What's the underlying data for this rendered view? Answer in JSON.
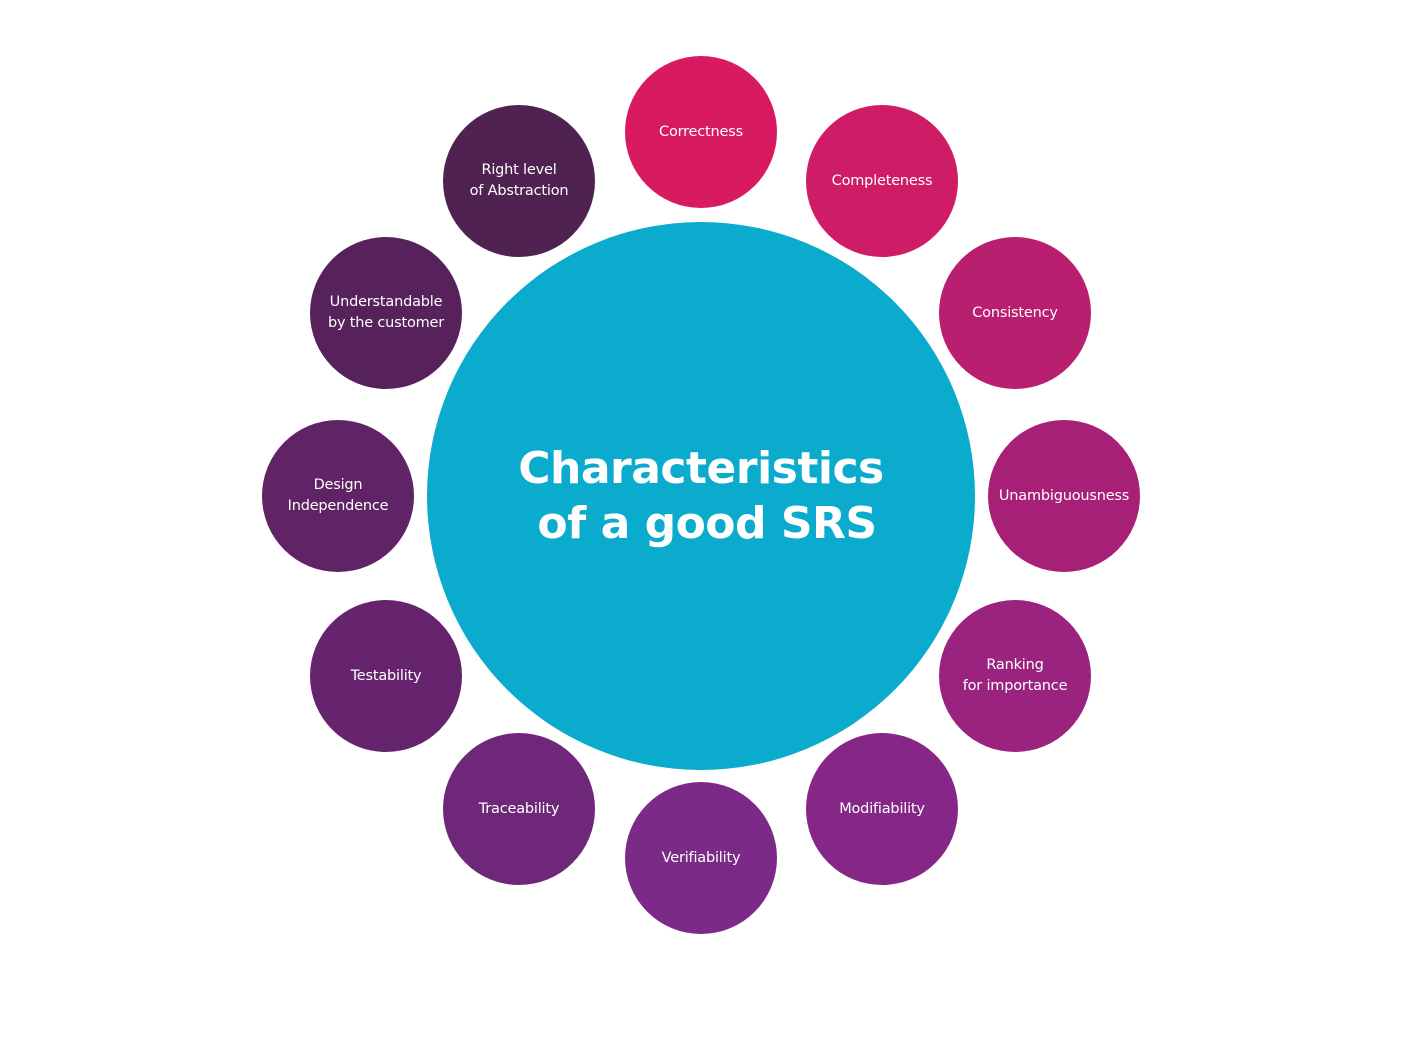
{
  "center": {
    "title_line1": "Characteristics",
    "title_line2": "of a good SRS",
    "color": "#0aabcd"
  },
  "nodes": [
    {
      "key": "correctness",
      "lines": [
        "Correctness"
      ],
      "color": "#d81b60"
    },
    {
      "key": "completeness",
      "lines": [
        "Completeness"
      ],
      "color": "#cf1c66"
    },
    {
      "key": "consistency",
      "lines": [
        "Consistency"
      ],
      "color": "#b81f6f"
    },
    {
      "key": "unambiguousness",
      "lines": [
        "Unambiguousness"
      ],
      "color": "#a81f77"
    },
    {
      "key": "ranking",
      "lines": [
        "Ranking",
        "for importance"
      ],
      "color": "#9a237f"
    },
    {
      "key": "modifiability",
      "lines": [
        "Modifiability"
      ],
      "color": "#862788"
    },
    {
      "key": "verifiability",
      "lines": [
        "Verifiability"
      ],
      "color": "#7b2a87"
    },
    {
      "key": "traceability",
      "lines": [
        "Traceability"
      ],
      "color": "#6f2879"
    },
    {
      "key": "testability",
      "lines": [
        "Testability"
      ],
      "color": "#66246e"
    },
    {
      "key": "design-independence",
      "lines": [
        "Design",
        "Independence"
      ],
      "color": "#5f2366"
    },
    {
      "key": "understandable",
      "lines": [
        "Understandable",
        "by the customer"
      ],
      "color": "#57215c"
    },
    {
      "key": "abstraction",
      "lines": [
        "Right level",
        "of Abstraction"
      ],
      "color": "#4f2252"
    }
  ]
}
